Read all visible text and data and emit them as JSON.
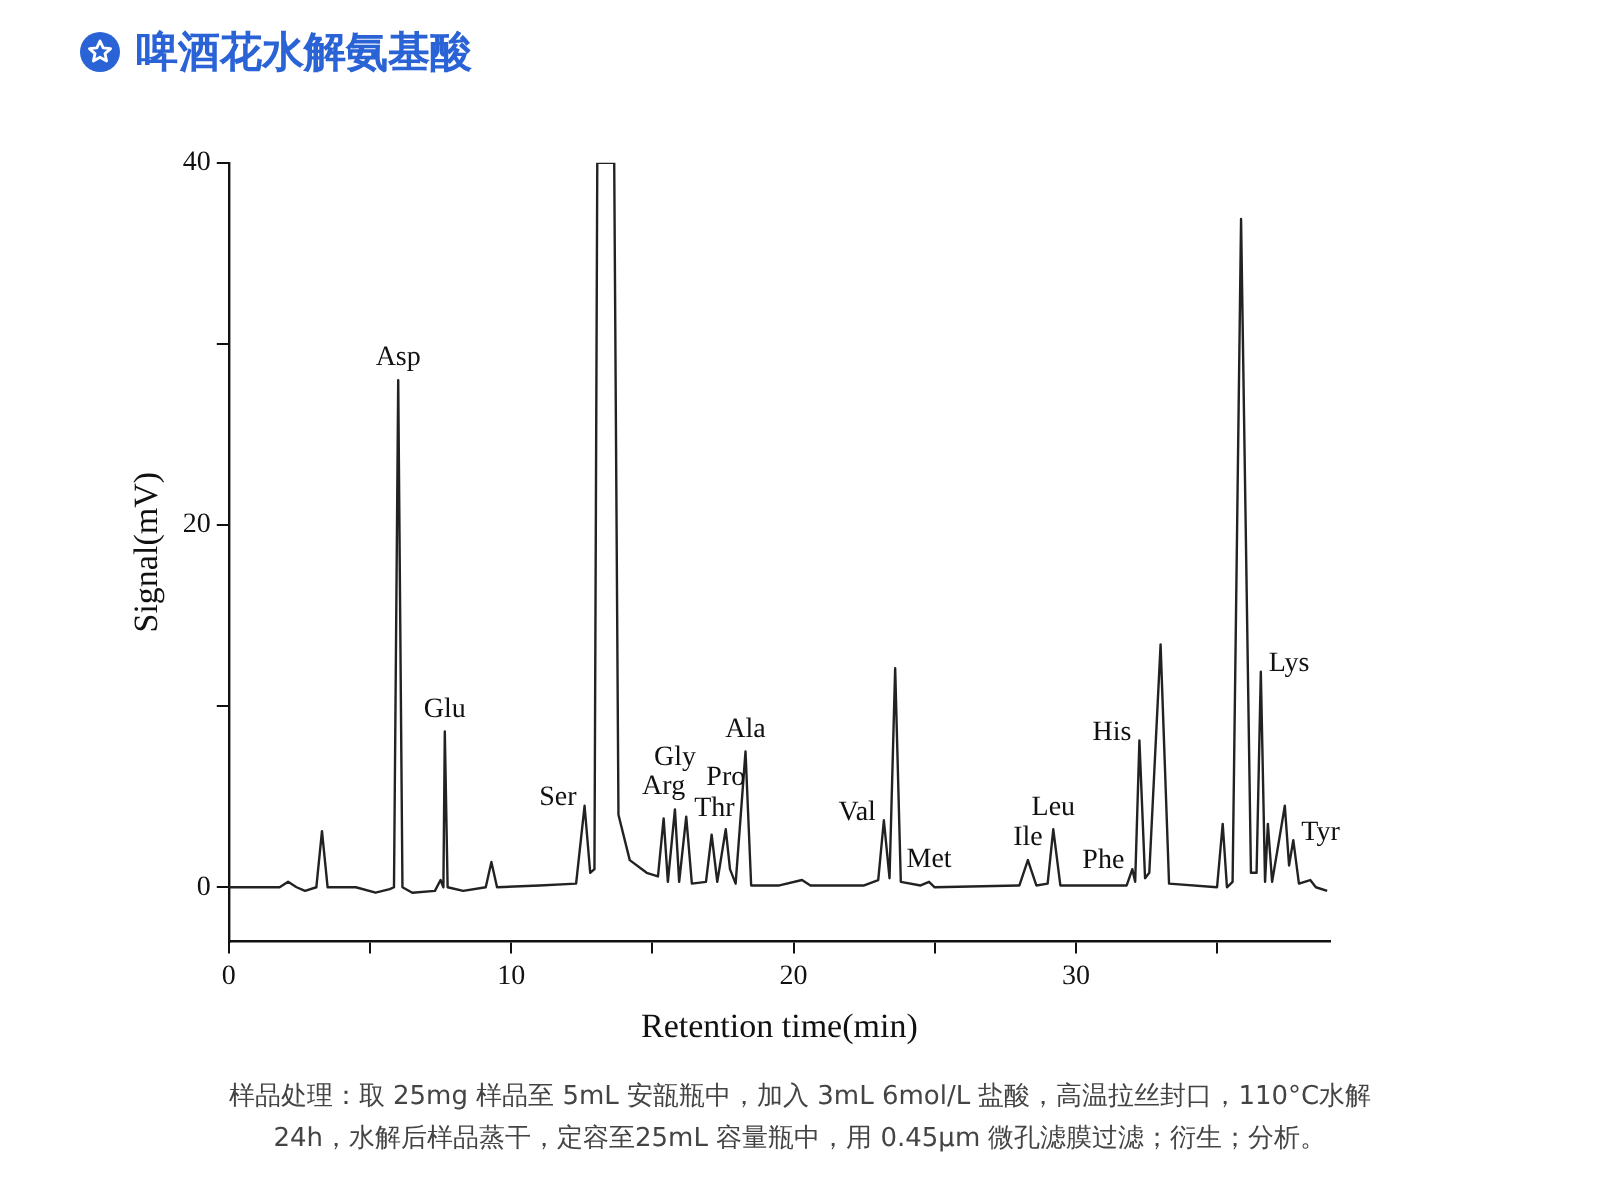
{
  "chart_data": {
    "type": "line",
    "title": "啤酒花水解氨基酸",
    "xlabel": "Retention time(min)",
    "ylabel": "Signal(mV)",
    "xlim": [
      0,
      39
    ],
    "ylim": [
      -3,
      40
    ],
    "xticks": [
      0,
      {
        "value": 5,
        "label": null
      },
      10,
      {
        "value": 15,
        "label": null
      },
      20,
      {
        "value": 25,
        "label": null
      },
      30,
      {
        "value": 35,
        "label": null
      }
    ],
    "yticks": [
      0,
      {
        "value": 10,
        "label": null
      },
      20,
      {
        "value": 30,
        "label": null
      },
      40
    ],
    "x": [
      0,
      1.8,
      2.1,
      2.4,
      2.7,
      3.1,
      3.3,
      3.5,
      4.5,
      5.2,
      5.7,
      5.85,
      6.0,
      6.15,
      6.5,
      7.3,
      7.5,
      7.6,
      7.65,
      7.75,
      8.3,
      9.1,
      9.3,
      9.5,
      11,
      12.3,
      12.6,
      12.8,
      12.95,
      13.05,
      13.65,
      13.8,
      14.2,
      14.8,
      15.2,
      15.4,
      15.55,
      15.8,
      15.95,
      16.2,
      16.4,
      16.9,
      17.1,
      17.3,
      17.6,
      17.75,
      17.95,
      18.3,
      18.5,
      19.5,
      20.3,
      20.6,
      22.5,
      23.0,
      23.2,
      23.4,
      23.6,
      23.8,
      24.5,
      24.8,
      25.0,
      28.0,
      28.3,
      28.6,
      29.0,
      29.2,
      29.45,
      31.8,
      32.0,
      32.1,
      32.25,
      32.45,
      32.6,
      33.0,
      33.3,
      35.0,
      35.2,
      35.35,
      35.55,
      35.85,
      36.2,
      36.4,
      36.55,
      36.7,
      36.8,
      36.95,
      37.4,
      37.55,
      37.7,
      37.9,
      38.3,
      38.5,
      38.9
    ],
    "series": [
      {
        "color": "#222222",
        "values": [
          0,
          0,
          0.3,
          0,
          -0.2,
          0,
          3.1,
          0,
          0,
          -0.3,
          -0.1,
          0,
          28,
          0,
          -0.3,
          -0.2,
          0.4,
          0,
          8.6,
          0,
          -0.2,
          0,
          1.4,
          0,
          0.1,
          0.2,
          4.5,
          0.8,
          1.0,
          40,
          40,
          4,
          1.5,
          0.8,
          0.6,
          3.8,
          0.3,
          4.3,
          0.3,
          3.9,
          0.2,
          0.3,
          2.9,
          0.3,
          3.2,
          1,
          0.2,
          7.5,
          0.1,
          0.1,
          0.4,
          0.1,
          0.1,
          0.4,
          3.7,
          0.5,
          12.1,
          0.3,
          0.1,
          0.3,
          0,
          0.1,
          1.5,
          0.1,
          0.2,
          3.2,
          0.1,
          0.1,
          1.0,
          0.3,
          8.1,
          0.5,
          0.8,
          13.4,
          0.2,
          0,
          3.5,
          0,
          0.3,
          36.9,
          0.8,
          0.8,
          11.9,
          0.3,
          3.5,
          0.3,
          4.5,
          1.2,
          2.6,
          0.2,
          0.4,
          0,
          -0.2
        ]
      }
    ],
    "annotations": [
      {
        "text": "Asp",
        "x": 6.0,
        "y": 28
      },
      {
        "text": "Glu",
        "x": 7.65,
        "y": 8.6
      },
      {
        "text": "Ser",
        "x": 12.6,
        "y": 4.5
      },
      {
        "text": "Arg",
        "x": 15.4,
        "y": 3.8
      },
      {
        "text": "Gly",
        "x": 15.8,
        "y": 4.3
      },
      {
        "text": "Thr",
        "x": 16.2,
        "y": 3.9
      },
      {
        "text": "Pro",
        "x": 17.6,
        "y": 3.2
      },
      {
        "text": "Ala",
        "x": 18.3,
        "y": 7.5
      },
      {
        "text": "Val",
        "x": 23.2,
        "y": 3.7
      },
      {
        "text": "Met",
        "x": 24.8,
        "y": 0.3
      },
      {
        "text": "Ile",
        "x": 28.3,
        "y": 1.5
      },
      {
        "text": "Leu",
        "x": 29.2,
        "y": 3.2
      },
      {
        "text": "Phe",
        "x": 32.0,
        "y": 1.0
      },
      {
        "text": "His",
        "x": 32.25,
        "y": 8.1
      },
      {
        "text": "Lys",
        "x": 36.55,
        "y": 11.9
      },
      {
        "text": "Tyr",
        "x": 37.7,
        "y": 2.6
      },
      "样品处理：取 25mg 样品至 5mL 安瓿瓶中，加入 3mL 6mol/L 盐酸，高温拉丝封口，110°C水解 24h，水解后样品蒸干，定容至25mL 容量瓶中，用 0.45μm 微孔滤膜过滤；衍生；分析。"
    ]
  }
}
